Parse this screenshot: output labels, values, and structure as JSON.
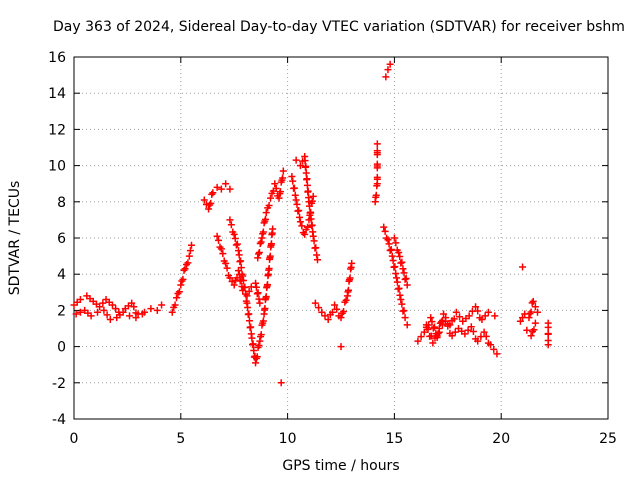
{
  "chart_data": {
    "type": "scatter",
    "title": "Day 363 of 2024, Sidereal Day-to-day VTEC variation (SDTVAR) for receiver bshm",
    "xlabel": "GPS time / hours",
    "ylabel": "SDTVAR / TECUs",
    "xlim": [
      0,
      25
    ],
    "ylim": [
      -4,
      16
    ],
    "xticks": [
      0,
      5,
      10,
      15,
      20,
      25
    ],
    "yticks": [
      -4,
      -2,
      0,
      2,
      4,
      6,
      8,
      10,
      12,
      14,
      16
    ],
    "grid": true,
    "marker": "+",
    "color": "#ff0000",
    "series": [
      {
        "name": "SDTVAR",
        "segments": [
          {
            "x": [
              0.0,
              0.3,
              0.6,
              0.9,
              1.2,
              1.5,
              1.8,
              2.1,
              2.4,
              2.7,
              3.0,
              3.3,
              3.6,
              3.9,
              4.1
            ],
            "y": [
              2.3,
              2.6,
              2.8,
              2.5,
              2.2,
              2.6,
              2.3,
              1.9,
              2.1,
              2.4,
              1.8,
              1.9,
              2.1,
              2.0,
              2.3
            ]
          },
          {
            "x": [
              0.1,
              0.5,
              0.8,
              1.1,
              1.4,
              1.7,
              2.0,
              2.3,
              2.6,
              2.9,
              3.2
            ],
            "y": [
              1.8,
              2.0,
              1.7,
              1.9,
              2.0,
              1.5,
              1.6,
              1.9,
              1.7,
              1.6,
              1.8
            ]
          },
          {
            "x": [
              4.6,
              4.8,
              5.0,
              5.2,
              5.4,
              5.5
            ],
            "y": [
              1.9,
              2.7,
              3.4,
              4.3,
              5.0,
              5.6
            ]
          },
          {
            "x": [
              6.1,
              6.3,
              6.5,
              6.7,
              6.9,
              7.1,
              7.3
            ],
            "y": [
              8.1,
              7.6,
              8.5,
              8.8,
              8.7,
              9.0,
              8.7
            ]
          },
          {
            "x": [
              6.7,
              6.9,
              7.1,
              7.3,
              7.5,
              7.7,
              7.9,
              8.1,
              8.3,
              8.5,
              8.7
            ],
            "y": [
              6.1,
              5.4,
              4.6,
              3.8,
              3.4,
              4.2,
              3.1,
              2.8,
              3.3,
              3.5,
              2.4
            ]
          },
          {
            "x": [
              7.3,
              7.5,
              7.7,
              7.9,
              8.1,
              8.3,
              8.5,
              8.7,
              8.9,
              9.1,
              9.3
            ],
            "y": [
              7.0,
              6.2,
              5.3,
              3.9,
              2.4,
              0.7,
              -0.9,
              0.3,
              1.8,
              4.0,
              6.5
            ]
          },
          {
            "x": [
              8.6,
              8.8,
              9.0,
              9.2,
              9.4,
              9.6,
              9.8
            ],
            "y": [
              4.9,
              6.0,
              7.4,
              8.2,
              9.0,
              8.2,
              9.7
            ]
          },
          {
            "x": [
              9.7
            ],
            "y": [
              -2.0
            ]
          },
          {
            "x": [
              10.4,
              10.6,
              10.8,
              11.0,
              11.2,
              11.4
            ],
            "y": [
              10.3,
              10.0,
              10.5,
              8.0,
              6.1,
              4.8
            ]
          },
          {
            "x": [
              10.2,
              10.4,
              10.6,
              10.8,
              11.0,
              11.2
            ],
            "y": [
              9.4,
              8.1,
              6.9,
              6.2,
              7.0,
              8.3
            ]
          },
          {
            "x": [
              11.3,
              11.6,
              11.9,
              12.2,
              12.5,
              12.8,
              13.0
            ],
            "y": [
              2.4,
              1.9,
              1.5,
              2.3,
              1.6,
              2.8,
              4.6
            ]
          },
          {
            "x": [
              12.5
            ],
            "y": [
              0.0
            ]
          },
          {
            "x": [
              14.1,
              14.2,
              14.2
            ],
            "y": [
              8.0,
              9.0,
              11.2
            ]
          },
          {
            "x": [
              14.6,
              14.7,
              14.8
            ],
            "y": [
              14.9,
              15.3,
              15.6
            ]
          },
          {
            "x": [
              14.5,
              14.7,
              14.9,
              15.1,
              15.3,
              15.5,
              15.6
            ],
            "y": [
              6.6,
              5.9,
              5.0,
              3.8,
              2.6,
              1.6,
              1.2
            ]
          },
          {
            "x": [
              15.0,
              15.2,
              15.4,
              15.6
            ],
            "y": [
              6.0,
              5.2,
              4.3,
              3.4
            ]
          },
          {
            "x": [
              16.1,
              16.4,
              16.7,
              17.0,
              17.3,
              17.6,
              17.9,
              18.2,
              18.5,
              18.8,
              19.1,
              19.4,
              19.7
            ],
            "y": [
              0.3,
              0.8,
              1.6,
              0.5,
              1.8,
              1.2,
              1.9,
              1.4,
              1.7,
              2.2,
              1.5,
              1.9,
              1.7
            ]
          },
          {
            "x": [
              16.5,
              16.8,
              17.1,
              17.4,
              17.7,
              18.0,
              18.3,
              18.6,
              18.9,
              19.2,
              19.5,
              19.8
            ],
            "y": [
              1.2,
              0.2,
              1.0,
              1.4,
              0.6,
              1.0,
              0.7,
              1.1,
              0.3,
              0.8,
              0.1,
              -0.4
            ]
          },
          {
            "x": [
              20.9,
              21.1,
              21.3,
              21.5,
              21.7
            ],
            "y": [
              1.4,
              1.8,
              1.6,
              2.5,
              1.9
            ]
          },
          {
            "x": [
              21.0
            ],
            "y": [
              4.4
            ]
          },
          {
            "x": [
              21.2,
              21.4,
              21.6
            ],
            "y": [
              0.9,
              0.6,
              1.3
            ]
          },
          {
            "x": [
              22.2,
              22.2
            ],
            "y": [
              1.3,
              0.1
            ]
          }
        ]
      }
    ]
  }
}
